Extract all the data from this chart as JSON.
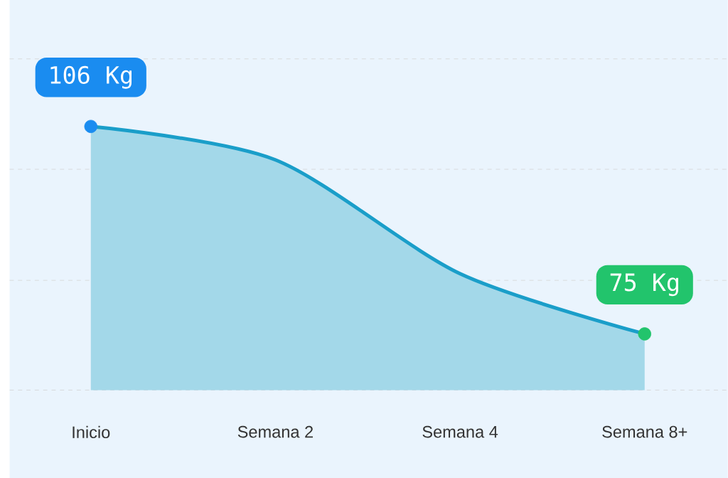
{
  "chart_data": {
    "type": "area",
    "categories": [
      "Inicio",
      "Semana 2",
      "Semana 4",
      "Semana 8+"
    ],
    "values": [
      106,
      101,
      84,
      75
    ],
    "value_labels": [
      "106 Kg",
      null,
      null,
      "75 Kg"
    ],
    "color": "#1a9ec9",
    "colors": [
      "#1a8cf0",
      null,
      null,
      "#22c46c"
    ],
    "marker": "circle",
    "grid": "y",
    "ylim": [
      66.6,
      124.9
    ],
    "yticks": [
      {
        "value": 66.6,
        "label": null
      },
      {
        "value": 83.0,
        "label": null
      },
      {
        "value": 99.6,
        "label": null
      },
      {
        "value": 116.1,
        "label": null
      }
    ]
  }
}
